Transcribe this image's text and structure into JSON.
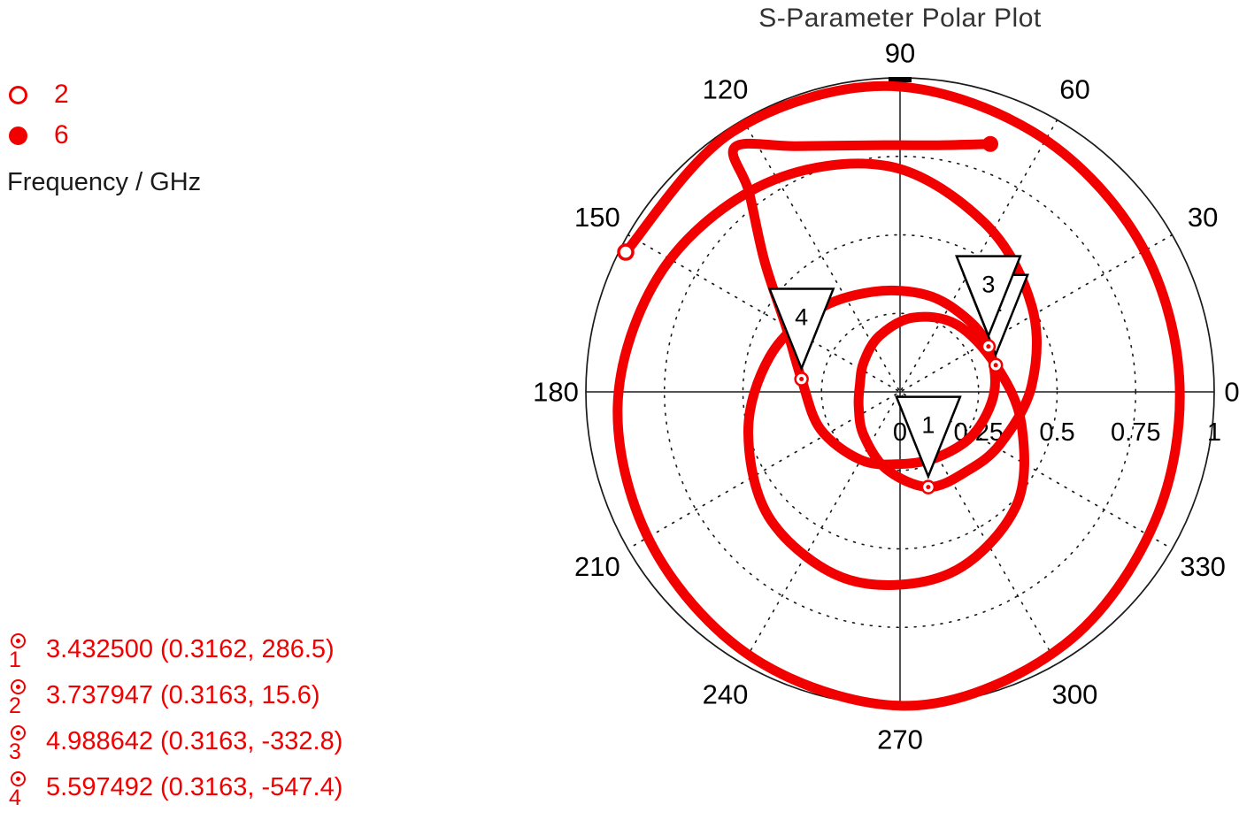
{
  "title": "S-Parameter Polar Plot",
  "colors": {
    "trace": "#f20000",
    "grid": "#1a1a1a",
    "red_text": "#f20000"
  },
  "legend": {
    "items": [
      {
        "label": "2",
        "marker": "open-circle"
      },
      {
        "label": "6",
        "marker": "filled-circle"
      }
    ],
    "axis_label": "Frequency / GHz"
  },
  "marker_readouts": [
    {
      "index": "1",
      "text": "3.432500 (0.3162, 286.5)"
    },
    {
      "index": "2",
      "text": "3.737947 (0.3163, 15.6)"
    },
    {
      "index": "3",
      "text": "4.988642 (0.3163, -332.8)"
    },
    {
      "index": "4",
      "text": "5.597492 (0.3163, -547.4)"
    }
  ],
  "chart_data": {
    "type": "line",
    "subtype": "polar",
    "title": "S-Parameter Polar Plot",
    "frequency_unit": "GHz",
    "frequency_range": [
      2,
      6
    ],
    "angular_tick_labels": [
      "0",
      "30",
      "60",
      "90",
      "120",
      "150",
      "180",
      "210",
      "240",
      "270",
      "300",
      "330"
    ],
    "radial_tick_labels": [
      "0",
      "0.25",
      "0.5",
      "0.75",
      "1"
    ],
    "radial_tick_values": [
      0,
      0.25,
      0.5,
      0.75,
      1
    ],
    "rlim": [
      0,
      1
    ],
    "grid": "dotted",
    "legend_position": "top-left",
    "trace": {
      "name": "S-parameter",
      "color": "#f20000",
      "points_polar_deg_mag": [
        [
          153,
          0.98
        ],
        [
          123,
          0.985
        ],
        [
          93,
          0.975
        ],
        [
          63,
          0.93
        ],
        [
          33,
          0.9
        ],
        [
          3,
          0.89
        ],
        [
          -27,
          0.91
        ],
        [
          -57,
          0.96
        ],
        [
          -87,
          1.0
        ],
        [
          -117,
          0.97
        ],
        [
          -147,
          0.93
        ],
        [
          -177,
          0.9
        ],
        [
          -207,
          0.85
        ],
        [
          -237,
          0.79
        ],
        [
          -267,
          0.72
        ],
        [
          -297,
          0.6
        ],
        [
          -327,
          0.5
        ],
        [
          -357,
          0.42
        ],
        [
          -387,
          0.36
        ],
        [
          -410,
          0.33
        ],
        [
          -433.5,
          0.3162
        ],
        [
          -460,
          0.25
        ],
        [
          -490,
          0.18
        ],
        [
          -520,
          0.14
        ],
        [
          -550,
          0.13
        ],
        [
          -580,
          0.15
        ],
        [
          -610,
          0.19
        ],
        [
          -640,
          0.24
        ],
        [
          -670,
          0.28
        ],
        [
          -704.4,
          0.3163
        ],
        [
          -735,
          0.4
        ],
        [
          -765,
          0.52
        ],
        [
          -795,
          0.6
        ],
        [
          -825,
          0.62
        ],
        [
          -855,
          0.58
        ],
        [
          -885,
          0.5
        ],
        [
          -915,
          0.43
        ],
        [
          -945,
          0.37
        ],
        [
          -975,
          0.33
        ],
        [
          -1005,
          0.32
        ],
        [
          -1030,
          0.315
        ],
        [
          -1052.8,
          0.3163
        ],
        [
          -1080,
          0.3
        ],
        [
          -1110,
          0.27
        ],
        [
          -1140,
          0.24
        ],
        [
          -1170,
          0.23
        ],
        [
          -1200,
          0.25
        ],
        [
          -1235,
          0.28
        ],
        [
          -1267.4,
          0.3163
        ],
        [
          -1290,
          0.42
        ],
        [
          -1304,
          0.6
        ],
        [
          -1313,
          0.8
        ],
        [
          -1316,
          0.94
        ],
        [
          -1327,
          0.85
        ],
        [
          -1346.5,
          0.787
        ],
        [
          -1359,
          0.795
        ],
        [
          -1370,
          0.84
        ]
      ]
    },
    "markers": [
      {
        "id": "1",
        "freq_ghz": 3.4325,
        "magnitude": 0.3162,
        "phase_deg": 286.5
      },
      {
        "id": "2",
        "freq_ghz": 3.737947,
        "magnitude": 0.3163,
        "phase_deg": 15.6
      },
      {
        "id": "3",
        "freq_ghz": 4.988642,
        "magnitude": 0.3163,
        "phase_deg": -332.8
      },
      {
        "id": "4",
        "freq_ghz": 5.597492,
        "magnitude": 0.3163,
        "phase_deg": -547.4
      }
    ],
    "endpoints": {
      "start": {
        "freq_ghz": 2,
        "style": "open-circle"
      },
      "end": {
        "freq_ghz": 6,
        "style": "filled-circle"
      }
    }
  }
}
